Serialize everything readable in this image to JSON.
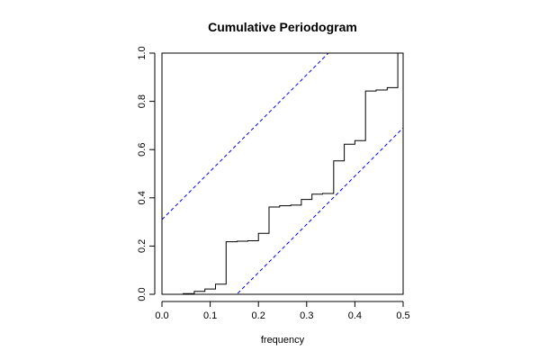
{
  "chart_data": {
    "type": "line",
    "subtype": "step",
    "title": "Cumulative Periodogram",
    "xlabel": "frequency",
    "ylabel": "",
    "xlim": [
      0.0,
      0.5
    ],
    "ylim": [
      0.0,
      1.0
    ],
    "x_ticks": [
      "0.0",
      "0.1",
      "0.2",
      "0.3",
      "0.4",
      "0.5"
    ],
    "y_ticks": [
      "0.0",
      "0.2",
      "0.4",
      "0.6",
      "0.8",
      "1.0"
    ],
    "grid": false,
    "legend": "none",
    "series": [
      {
        "style": "step",
        "color": "#000000",
        "x": [
          0.0,
          0.022,
          0.044,
          0.067,
          0.089,
          0.111,
          0.133,
          0.156,
          0.178,
          0.2,
          0.222,
          0.244,
          0.267,
          0.289,
          0.311,
          0.333,
          0.356,
          0.378,
          0.4,
          0.422,
          0.444,
          0.467,
          0.489,
          0.5
        ],
        "y": [
          0.0,
          0.0,
          0.003,
          0.012,
          0.022,
          0.042,
          0.218,
          0.22,
          0.222,
          0.253,
          0.362,
          0.367,
          0.37,
          0.393,
          0.415,
          0.418,
          0.553,
          0.622,
          0.637,
          0.843,
          0.847,
          0.857,
          1.0,
          1.0
        ]
      },
      {
        "style": "dashed",
        "color": "#0000ff",
        "x": [
          0.0,
          0.5
        ],
        "y": [
          0.31,
          1.31
        ]
      },
      {
        "style": "dashed",
        "color": "#0000ff",
        "x": [
          0.0,
          0.5
        ],
        "y": [
          -0.31,
          0.69
        ]
      }
    ]
  }
}
